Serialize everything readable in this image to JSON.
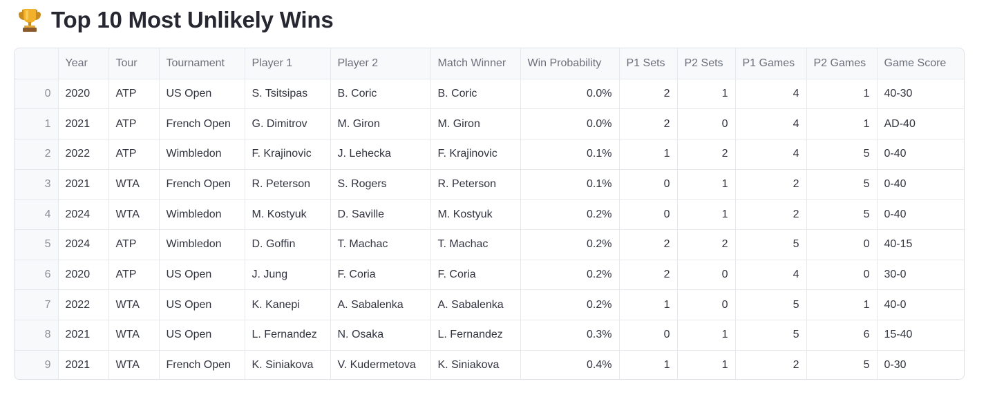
{
  "page": {
    "title": "Top 10 Most Unlikely Wins",
    "title_icon": "trophy-icon"
  },
  "table": {
    "columns": [
      "",
      "Year",
      "Tour",
      "Tournament",
      "Player 1",
      "Player 2",
      "Match Winner",
      "Win Probability",
      "P1 Sets",
      "P2 Sets",
      "P1 Games",
      "P2 Games",
      "Game Score"
    ],
    "rows": [
      [
        "0",
        "2020",
        "ATP",
        "US Open",
        "S. Tsitsipas",
        "B. Coric",
        "B. Coric",
        "0.0%",
        "2",
        "1",
        "4",
        "1",
        "40-30"
      ],
      [
        "1",
        "2021",
        "ATP",
        "French Open",
        "G. Dimitrov",
        "M. Giron",
        "M. Giron",
        "0.0%",
        "2",
        "0",
        "4",
        "1",
        "AD-40"
      ],
      [
        "2",
        "2022",
        "ATP",
        "Wimbledon",
        "F. Krajinovic",
        "J. Lehecka",
        "F. Krajinovic",
        "0.1%",
        "1",
        "2",
        "4",
        "5",
        "0-40"
      ],
      [
        "3",
        "2021",
        "WTA",
        "French Open",
        "R. Peterson",
        "S. Rogers",
        "R. Peterson",
        "0.1%",
        "0",
        "1",
        "2",
        "5",
        "0-40"
      ],
      [
        "4",
        "2024",
        "WTA",
        "Wimbledon",
        "M. Kostyuk",
        "D. Saville",
        "M. Kostyuk",
        "0.2%",
        "0",
        "1",
        "2",
        "5",
        "0-40"
      ],
      [
        "5",
        "2024",
        "ATP",
        "Wimbledon",
        "D. Goffin",
        "T. Machac",
        "T. Machac",
        "0.2%",
        "2",
        "2",
        "5",
        "0",
        "40-15"
      ],
      [
        "6",
        "2020",
        "ATP",
        "US Open",
        "J. Jung",
        "F. Coria",
        "F. Coria",
        "0.2%",
        "2",
        "0",
        "4",
        "0",
        "30-0"
      ],
      [
        "7",
        "2022",
        "WTA",
        "US Open",
        "K. Kanepi",
        "A. Sabalenka",
        "A. Sabalenka",
        "0.2%",
        "1",
        "0",
        "5",
        "1",
        "40-0"
      ],
      [
        "8",
        "2021",
        "WTA",
        "US Open",
        "L. Fernandez",
        "N. Osaka",
        "L. Fernandez",
        "0.3%",
        "0",
        "1",
        "5",
        "6",
        "15-40"
      ],
      [
        "9",
        "2021",
        "WTA",
        "French Open",
        "K. Siniakova",
        "V. Kudermetova",
        "K. Siniakova",
        "0.4%",
        "1",
        "1",
        "2",
        "5",
        "0-30"
      ]
    ]
  }
}
